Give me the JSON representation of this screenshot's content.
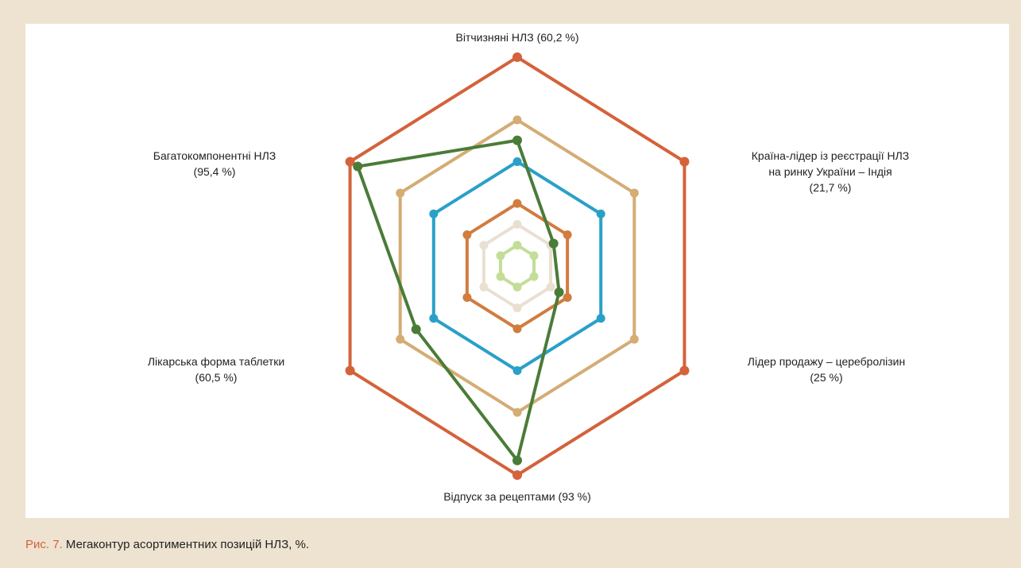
{
  "chart_data": {
    "type": "radar",
    "categories": [
      [
        "Вітчизняні НЛЗ"
      ],
      [
        "Країна-лідер із реєстрації НЛЗ",
        "на ринку України – Індія"
      ],
      [
        "Лідер продажу – церебролізин"
      ],
      [
        "Відпуск за рецептами"
      ],
      [
        "Лікарська форма таблетки"
      ],
      [
        "Багатокомпонентні НЛЗ"
      ]
    ],
    "values": [
      60.2,
      21.7,
      25,
      93,
      60.5,
      95.4
    ],
    "value_labels": [
      "(60,2 %)",
      "(21,7 %)",
      "(25 %)",
      "(93 %)",
      "(60,5 %)",
      "(95,4 %)"
    ],
    "color": "#4a7c38",
    "rlim": [
      0,
      100
    ],
    "rticks": [
      10,
      20,
      30,
      50,
      70,
      100
    ],
    "ring_colors": [
      "#c4dd97",
      "#e9e0d2",
      "#d27c3e",
      "#2aa0c8",
      "#d4ac74",
      "#d4623a"
    ],
    "caption_label": "Рис. 7.",
    "caption": "Мегаконтур асортиментних позицій НЛЗ, %."
  }
}
